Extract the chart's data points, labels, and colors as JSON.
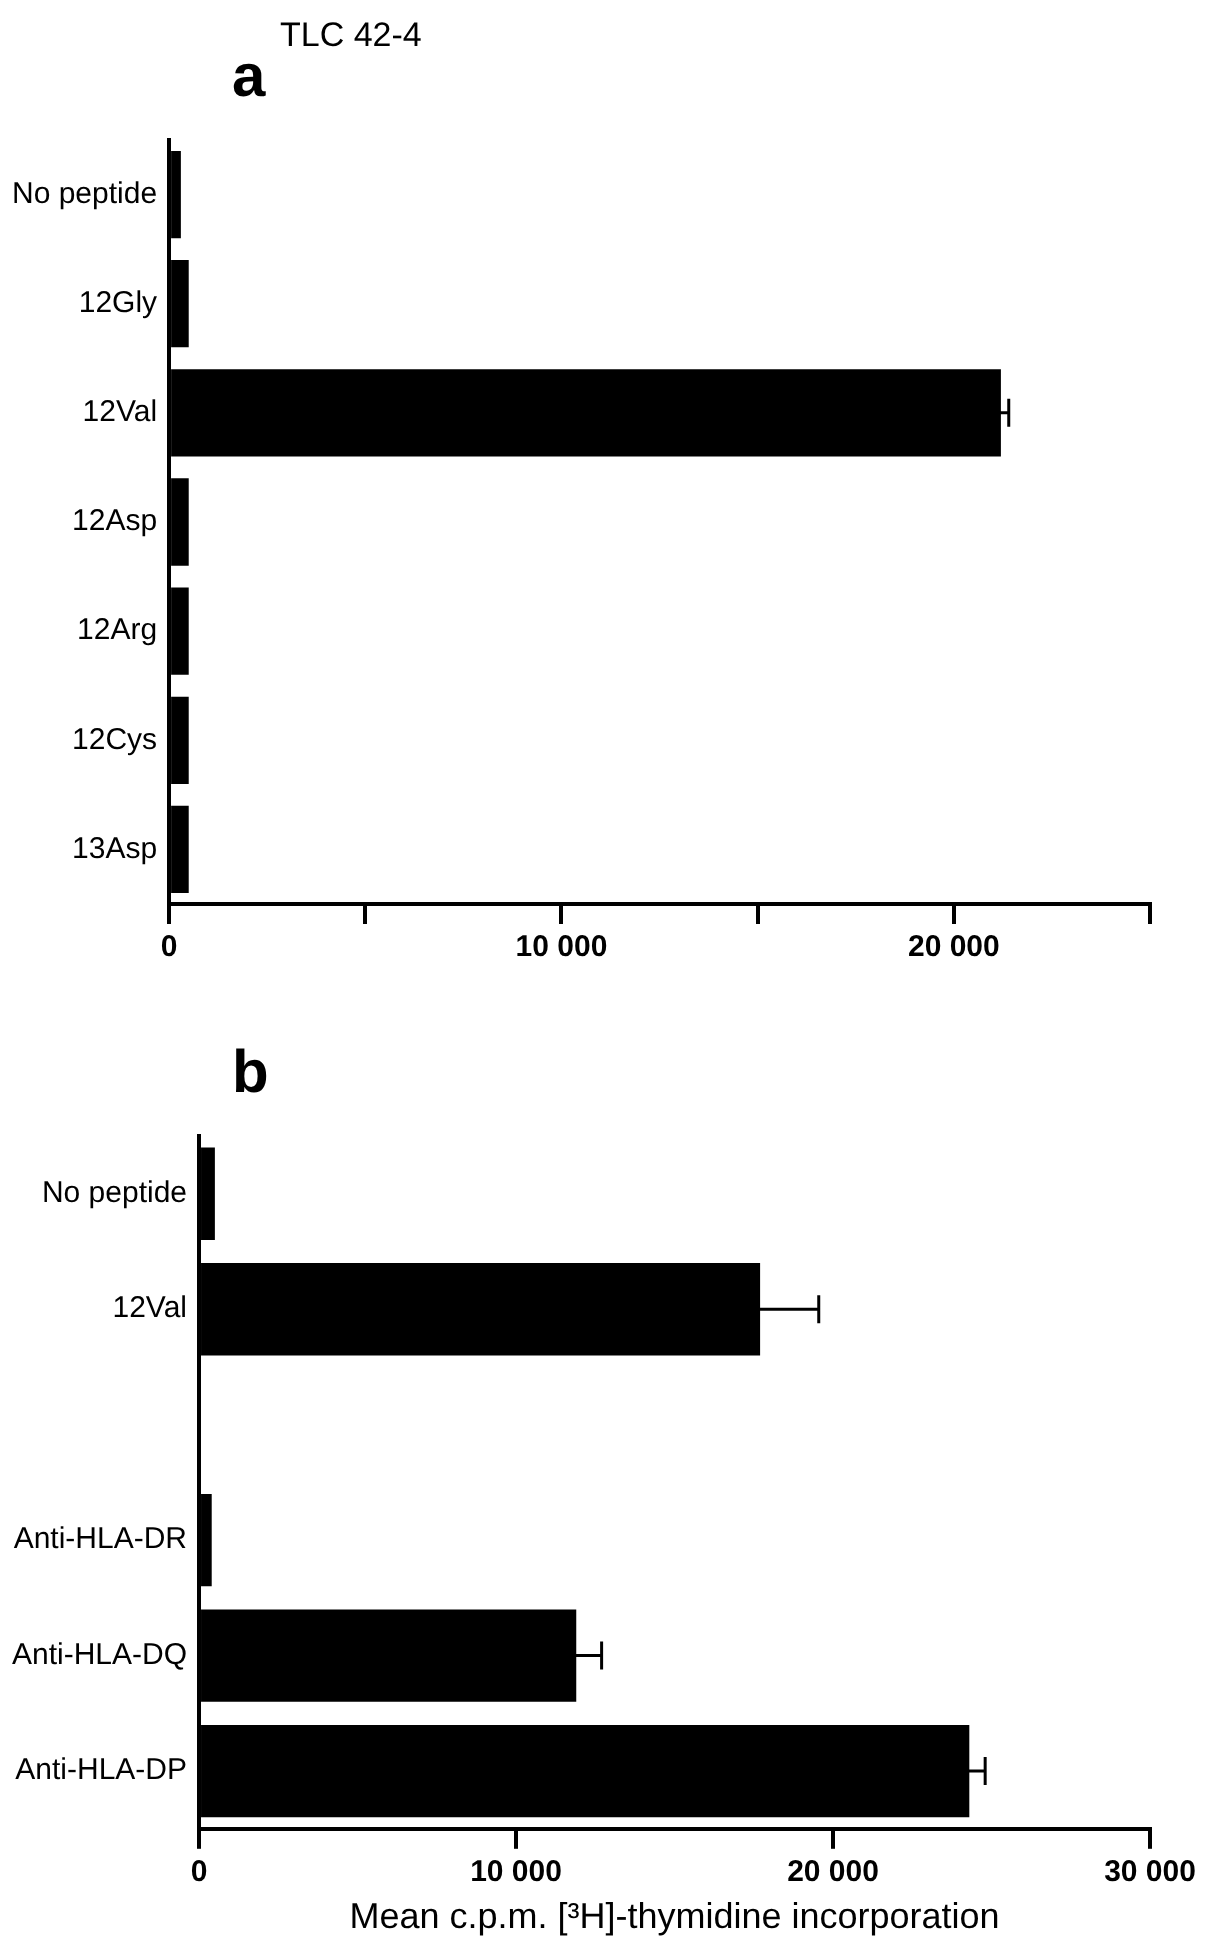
{
  "chart_data": [
    {
      "type": "bar",
      "orientation": "horizontal",
      "title": "TLC 42-4",
      "annotations": [
        "a"
      ],
      "categories": [
        "No peptide",
        "12Gly",
        "12Val",
        "12Asp",
        "12Arg",
        "12Cys",
        "13Asp"
      ],
      "values": [
        300,
        500,
        21200,
        500,
        500,
        500,
        500
      ],
      "errors": [
        null,
        null,
        200,
        null,
        null,
        null,
        null
      ],
      "color": "#000000",
      "xlim": [
        0,
        25000
      ],
      "xticks": [
        0,
        {
          "value": 5000,
          "label": null
        },
        {
          "value": 10000,
          "label": "10 000"
        },
        {
          "value": 15000,
          "label": null
        },
        {
          "value": 20000,
          "label": "20 000"
        },
        {
          "value": 25000,
          "label": null
        }
      ],
      "grid": false,
      "legend": false
    },
    {
      "type": "bar",
      "orientation": "horizontal",
      "annotations": [
        "b"
      ],
      "xlabel": "Mean c.p.m. [³H]-thymidine incorporation",
      "categories": [
        "No peptide",
        "12Val",
        null,
        "Anti-HLA-DR",
        "Anti-HLA-DQ",
        "Anti-HLA-DP"
      ],
      "values": [
        500,
        17700,
        null,
        400,
        11900,
        24300
      ],
      "errors": [
        null,
        1850,
        null,
        null,
        800,
        500
      ],
      "color": "#000000",
      "xlim": [
        0,
        30000
      ],
      "xticks": [
        0,
        {
          "value": 10000,
          "label": "10 000"
        },
        {
          "value": 20000,
          "label": "20 000"
        },
        {
          "value": 30000,
          "label": "30 000"
        }
      ],
      "grid": false,
      "legend": false
    }
  ]
}
